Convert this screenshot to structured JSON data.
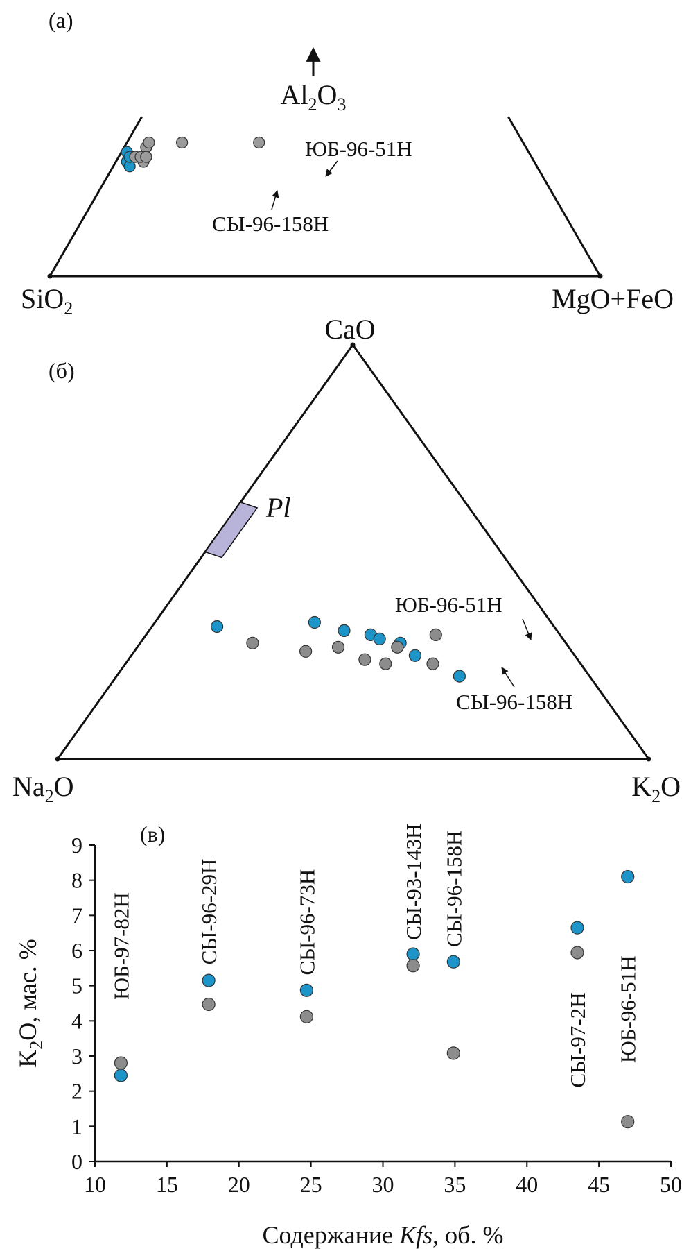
{
  "chart_data": [
    {
      "type": "scatter",
      "subtype": "ternary",
      "panel_label": "(a)",
      "vertices": {
        "left": {
          "base": "SiO",
          "sub": "2"
        },
        "right": {
          "text": "MgO+FeO"
        },
        "top": {
          "parts": [
            [
              "Al",
              "2"
            ],
            [
              "O",
              "3"
            ]
          ]
        }
      },
      "top_arrow": "up-arrow",
      "series": [
        {
          "color": "#1e95c8",
          "points": [
            [
              74,
              2,
              24
            ],
            [
              74,
              3,
              23
            ],
            [
              73,
              1,
              26
            ],
            [
              73,
              2,
              25
            ],
            [
              72,
              3,
              25
            ]
          ]
        },
        {
          "color": "#9a9a9a",
          "points": [
            [
              72,
              3,
              25
            ],
            [
              71,
              5,
              24
            ],
            [
              71,
              4,
              25
            ],
            [
              70,
              5,
              25
            ],
            [
              69,
              4,
              27
            ],
            [
              69,
              4,
              27
            ],
            [
              70,
              5,
              25
            ],
            [
              68,
              4,
              28
            ],
            [
              62,
              10,
              28
            ],
            [
              48,
              24,
              28
            ]
          ]
        }
      ],
      "annotations": [
        "ЮБ-96-51Н",
        "СЫ-96-158Н"
      ]
    },
    {
      "type": "scatter",
      "subtype": "ternary",
      "panel_label": "(б)",
      "vertices": {
        "left": {
          "base": "Na",
          "sub": "2",
          "tail": "O"
        },
        "right": {
          "base": "K",
          "sub": "2",
          "tail": "O"
        },
        "top": {
          "text": "CaO"
        }
      },
      "region_label": "Pl",
      "region_color": "#b8b3d8",
      "series": [
        {
          "color": "#1e95c8",
          "points": [
            [
              57,
              32,
              11
            ],
            [
              40,
              33,
              27
            ],
            [
              36,
              31,
              33
            ],
            [
              32,
              30,
              38
            ],
            [
              31,
              29,
              40
            ],
            [
              28,
              28,
              44
            ],
            [
              27,
              25,
              48
            ],
            [
              22,
              20,
              58
            ]
          ]
        },
        {
          "color": "#8c8c8c",
          "points": [
            [
              53,
              28,
              19
            ],
            [
              45,
              26,
              29
            ],
            [
              39,
              27,
              34
            ],
            [
              36,
              24,
              40
            ],
            [
              33,
              23,
              44
            ],
            [
              29,
              27,
              44
            ],
            [
              25,
              23,
              52
            ],
            [
              21,
              30,
              49
            ]
          ]
        }
      ],
      "annotations": [
        "ЮБ-96-51Н",
        "СЫ-96-158Н"
      ]
    },
    {
      "type": "scatter",
      "panel_label": "(в)",
      "xlabel_parts": [
        "Содержание ",
        "Kfs",
        ", об. %"
      ],
      "ylabel_parts": [
        "K",
        "2",
        "O, мас. %"
      ],
      "xlim": [
        10,
        50
      ],
      "ylim": [
        0,
        9
      ],
      "xticks": [
        "10",
        "15",
        "20",
        "25",
        "30",
        "35",
        "40",
        "45",
        "50"
      ],
      "yticks": [
        "0",
        "1",
        "2",
        "3",
        "4",
        "5",
        "6",
        "7",
        "8",
        "9"
      ],
      "series": [
        {
          "color": "#1e95c8",
          "points": [
            [
              11.8,
              2.45
            ],
            [
              17.9,
              5.15
            ],
            [
              24.7,
              4.87
            ],
            [
              32.1,
              5.9
            ],
            [
              34.9,
              5.68
            ],
            [
              43.5,
              6.65
            ],
            [
              47.0,
              8.1
            ]
          ]
        },
        {
          "color": "#8c8c8c",
          "points": [
            [
              11.8,
              2.8
            ],
            [
              17.9,
              4.47
            ],
            [
              24.7,
              4.12
            ],
            [
              32.1,
              5.57
            ],
            [
              34.9,
              3.08
            ],
            [
              43.5,
              5.94
            ],
            [
              47.0,
              1.13
            ]
          ]
        }
      ],
      "labels": [
        {
          "text": "ЮБ-97-82Н",
          "x": 11.8,
          "y0": 4.6
        },
        {
          "text": "СЫ-96-29Н",
          "x": 17.9,
          "y0": 5.6
        },
        {
          "text": "СЫ-96-73Н",
          "x": 24.7,
          "y0": 5.3
        },
        {
          "text": "СЫ-93-143Н",
          "x": 32.1,
          "y0": 6.3
        },
        {
          "text": "СЫ-96-158Н",
          "x": 34.9,
          "y0": 6.1
        },
        {
          "text": "СЫ-97-2Н",
          "x": 43.5,
          "y0": 2.1
        },
        {
          "text": "ЮБ-96-51Н",
          "x": 47.0,
          "y0": 2.8
        }
      ]
    }
  ]
}
